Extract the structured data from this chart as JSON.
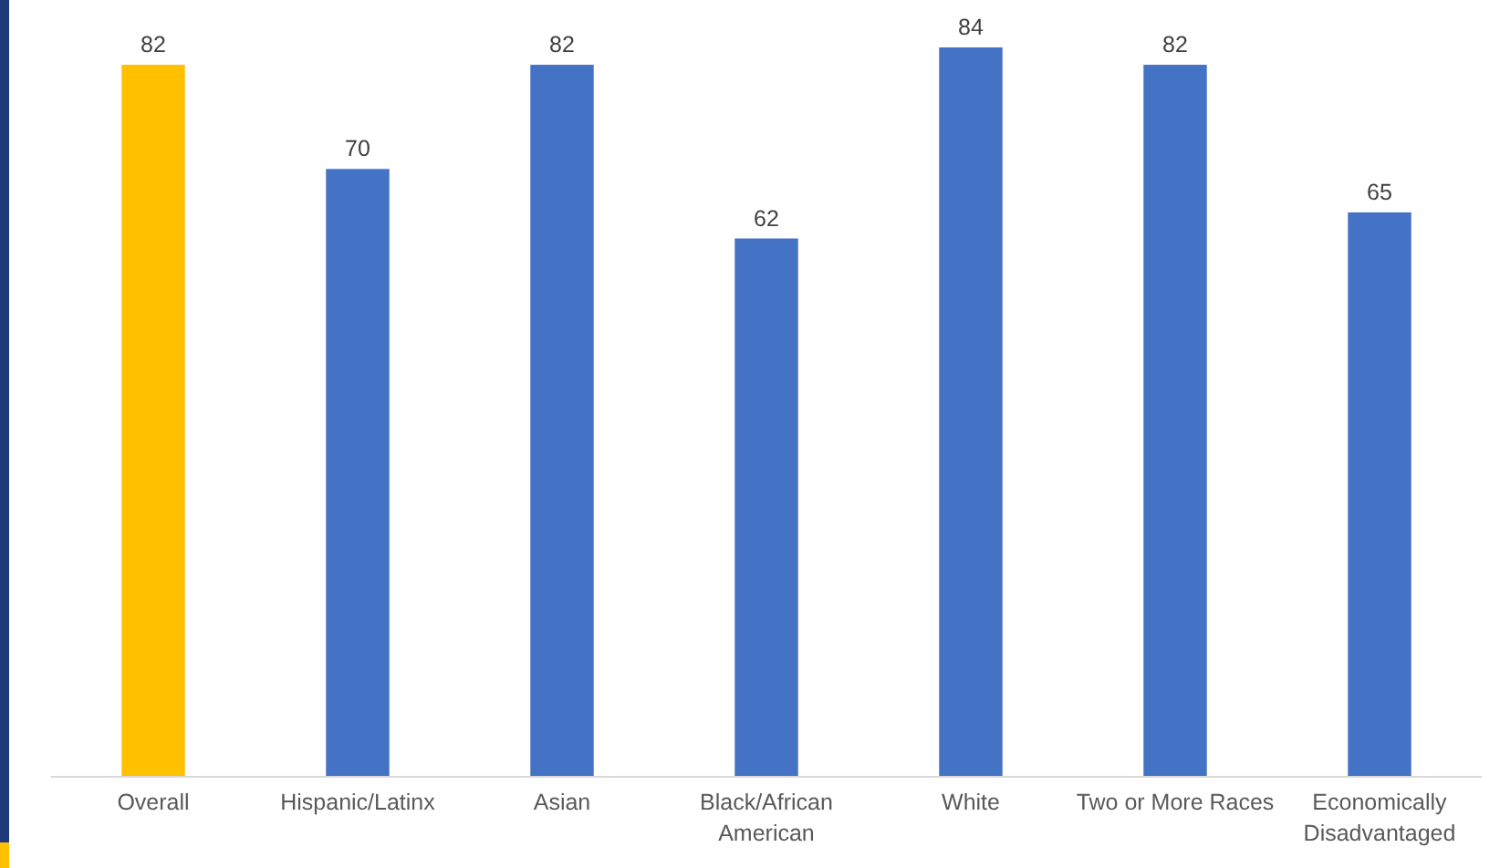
{
  "chart_data": {
    "type": "bar",
    "categories": [
      "Overall",
      "Hispanic/Latinx",
      "Asian",
      "Black/African American",
      "White",
      "Two or More Races",
      "Economically Disadvantaged"
    ],
    "values": [
      82,
      70,
      82,
      62,
      84,
      82,
      65
    ],
    "colors": [
      "#ffc000",
      "#4472c4",
      "#4472c4",
      "#4472c4",
      "#4472c4",
      "#4472c4",
      "#4472c4"
    ],
    "data_labels": true
  }
}
